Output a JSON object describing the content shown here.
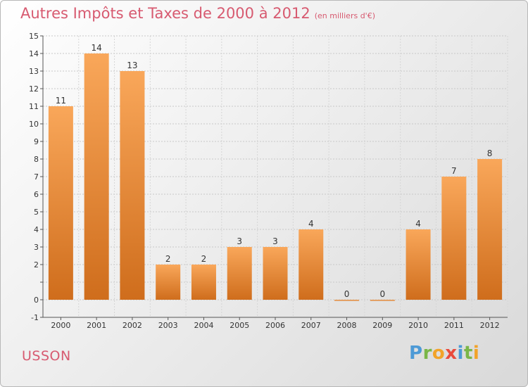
{
  "header": {
    "title": "Autres Impôts et Taxes de 2000 à 2012",
    "subtitle": "(en milliers d'€)"
  },
  "commune": "USSON",
  "logo": {
    "text": "Proxiti"
  },
  "colors": {
    "bar_top": "#f9a75a",
    "bar_bottom": "#cf6d1c",
    "title": "#d75a70"
  },
  "chart_data": {
    "type": "bar",
    "title": "Autres Impôts et Taxes de 2000 à 2012",
    "subtitle": "(en milliers d'€)",
    "xlabel": "",
    "ylabel": "",
    "categories": [
      "2000",
      "2001",
      "2002",
      "2003",
      "2004",
      "2005",
      "2006",
      "2007",
      "2008",
      "2009",
      "2010",
      "2011",
      "2012"
    ],
    "values": [
      11,
      14,
      13,
      2,
      2,
      3,
      3,
      4,
      0,
      0,
      4,
      7,
      8
    ],
    "data_labels": [
      "11",
      "14",
      "13",
      "2",
      "2",
      "3",
      "3",
      "4",
      "0",
      "0",
      "4",
      "7",
      "8"
    ],
    "ylim": [
      -1,
      15
    ],
    "yticks": [
      -1,
      0,
      1,
      2,
      3,
      4,
      5,
      6,
      7,
      8,
      9,
      10,
      11,
      12,
      13,
      14,
      15
    ],
    "ytick_labels": [
      "-1",
      "0",
      "",
      "2",
      "3",
      "4",
      "5",
      "6",
      "7",
      "8",
      "9",
      "10",
      "11",
      "12",
      "13",
      "14",
      "15"
    ],
    "grid": true,
    "legend": "none"
  }
}
